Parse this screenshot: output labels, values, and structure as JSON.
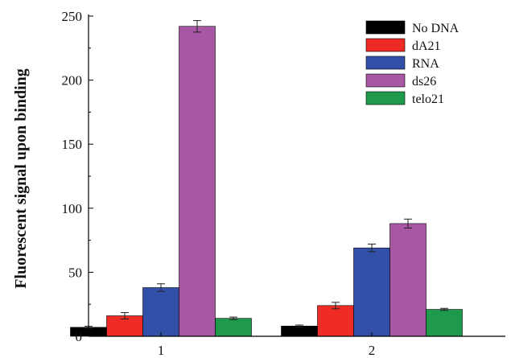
{
  "chart_data": {
    "type": "bar",
    "title": "",
    "xlabel": "",
    "ylabel": "Fluorescent signal upon binding",
    "ylim": [
      0,
      250
    ],
    "yticks": [
      0,
      50,
      100,
      150,
      200,
      250
    ],
    "categories": [
      "1",
      "2"
    ],
    "legend_position": "top-right",
    "grid": false,
    "series": [
      {
        "name": "No DNA",
        "color": "#000000",
        "values": [
          7,
          8
        ],
        "errors": [
          0.8,
          0.8
        ]
      },
      {
        "name": "dA21",
        "color": "#ee2b24",
        "values": [
          16,
          24
        ],
        "errors": [
          2.5,
          2.5
        ]
      },
      {
        "name": "RNA",
        "color": "#3350a8",
        "values": [
          38,
          69
        ],
        "errors": [
          3,
          3
        ]
      },
      {
        "name": "ds26",
        "color": "#a857a4",
        "values": [
          242,
          88
        ],
        "errors": [
          4.5,
          3.5
        ]
      },
      {
        "name": "telo21",
        "color": "#1f9a4c",
        "values": [
          14,
          21
        ],
        "errors": [
          1,
          0.8
        ]
      }
    ]
  }
}
